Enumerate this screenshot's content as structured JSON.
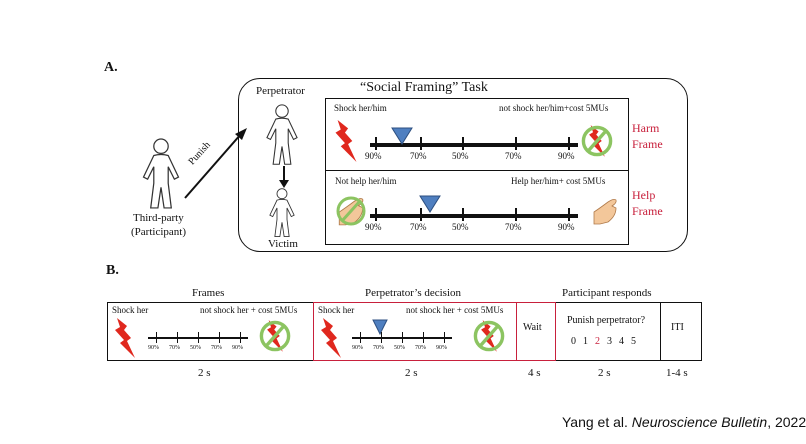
{
  "panel_a": {
    "label": "A.",
    "title": "“Social Framing” Task",
    "perpetrator": "Perpetrator",
    "victim": "Victim",
    "third_party": "Third-party",
    "participant": "(Participant)",
    "punish": "Punish",
    "harm": {
      "left": "Shock her/him",
      "right": "not shock her/him+cost 5MUs",
      "frame_1": "Harm",
      "frame_2": "Frame"
    },
    "help": {
      "left": "Not help her/him",
      "right": "Help her/him+ cost 5MUs",
      "frame_1": "Help",
      "frame_2": "Frame"
    },
    "ticks": [
      "90%",
      "70%",
      "50%",
      "70%",
      "90%"
    ],
    "marker_position": "70% (left)"
  },
  "panel_b": {
    "label": "B.",
    "headings": {
      "frames": "Frames",
      "decision": "Perpetrator’s decision",
      "responds": "Participant responds"
    },
    "frames": {
      "left": "Shock her",
      "right": "not shock her + cost 5MUs"
    },
    "decision": {
      "left": "Shock her",
      "right": "not shock her + cost 5MUs"
    },
    "wait": "Wait",
    "question": "Punish perpetrator?",
    "scale": [
      "0",
      "1",
      "2",
      "3",
      "4",
      "5"
    ],
    "selected": "2",
    "iti": "ITI",
    "durations": [
      "2 s",
      "2 s",
      "4 s",
      "2 s",
      "1-4 s"
    ],
    "ticks": [
      "90%",
      "70%",
      "50%",
      "70%",
      "90%"
    ]
  },
  "citation": {
    "author": "Yang et al. ",
    "journal": "Neuroscience Bulletin",
    "year": ", 2022"
  },
  "colors": {
    "accent_red": "#c8203c",
    "bolt": "#e0281e",
    "no_sign": "#8cc461",
    "marker": "#4f7fc0"
  }
}
